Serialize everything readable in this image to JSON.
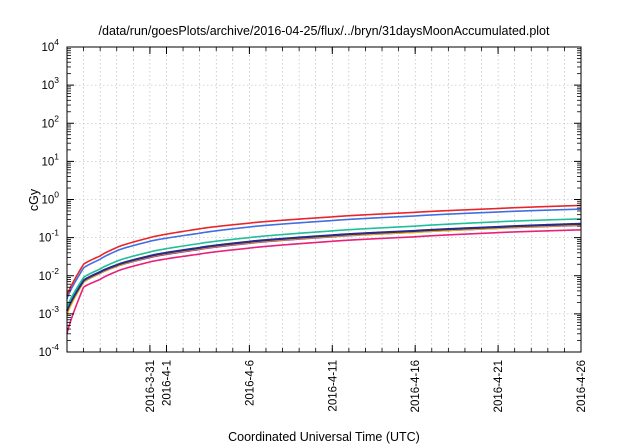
{
  "chart_data": {
    "type": "line",
    "title": "/data/run/goesPlots/archive/2016-04-25/flux/../bryn/31daysMoonAccumulated.plot",
    "xlabel": "Coordinated Universal Time (UTC)",
    "ylabel": "cGy",
    "yscale": "log",
    "ylim": [
      0.0001,
      10000
    ],
    "xlim": [
      "2016-03-26",
      "2016-04-26"
    ],
    "grid": true,
    "legend": "none",
    "y_ticks": [
      {
        "value": 0.0001,
        "base": "10",
        "exp": "-4"
      },
      {
        "value": 0.001,
        "base": "10",
        "exp": "-3"
      },
      {
        "value": 0.01,
        "base": "10",
        "exp": "-2"
      },
      {
        "value": 0.1,
        "base": "10",
        "exp": "-1"
      },
      {
        "value": 1,
        "base": "10",
        "exp": "0"
      },
      {
        "value": 10,
        "base": "10",
        "exp": "1"
      },
      {
        "value": 100,
        "base": "10",
        "exp": "2"
      },
      {
        "value": 1000,
        "base": "10",
        "exp": "3"
      },
      {
        "value": 10000,
        "base": "10",
        "exp": "4"
      }
    ],
    "x_ticks": [
      {
        "date": "2016-03-31",
        "label": "2016-3-31"
      },
      {
        "date": "2016-04-01",
        "label": "2016-4-1"
      },
      {
        "date": "2016-04-06",
        "label": "2016-4-6"
      },
      {
        "date": "2016-04-11",
        "label": "2016-4-11"
      },
      {
        "date": "2016-04-16",
        "label": "2016-4-16"
      },
      {
        "date": "2016-04-21",
        "label": "2016-4-21"
      },
      {
        "date": "2016-04-26",
        "label": "2016-4-26"
      }
    ],
    "series": [
      {
        "color": "#e8262a",
        "x": [
          "2016-03-26",
          "2016-03-27",
          "2016-03-28",
          "2016-03-29",
          "2016-03-31",
          "2016-04-03",
          "2016-04-06",
          "2016-04-11",
          "2016-04-16",
          "2016-04-21",
          "2016-04-26"
        ],
        "y": [
          0.003,
          0.02,
          0.033,
          0.055,
          0.1,
          0.17,
          0.24,
          0.35,
          0.46,
          0.58,
          0.7
        ]
      },
      {
        "color": "#3f6fe0",
        "x": [
          "2016-03-26",
          "2016-03-27",
          "2016-03-28",
          "2016-03-29",
          "2016-03-31",
          "2016-04-03",
          "2016-04-06",
          "2016-04-11",
          "2016-04-16",
          "2016-04-21",
          "2016-04-26"
        ],
        "y": [
          0.0025,
          0.016,
          0.027,
          0.045,
          0.08,
          0.13,
          0.19,
          0.28,
          0.37,
          0.47,
          0.56
        ]
      },
      {
        "color": "#1fbf9a",
        "x": [
          "2016-03-26",
          "2016-03-27",
          "2016-03-28",
          "2016-03-29",
          "2016-03-31",
          "2016-04-03",
          "2016-04-06",
          "2016-04-11",
          "2016-04-16",
          "2016-04-21",
          "2016-04-26"
        ],
        "y": [
          0.0015,
          0.009,
          0.015,
          0.024,
          0.042,
          0.07,
          0.1,
          0.15,
          0.2,
          0.26,
          0.31
        ]
      },
      {
        "color": "#f0b000",
        "x": [
          "2016-03-26",
          "2016-03-27",
          "2016-03-28",
          "2016-03-29",
          "2016-03-31",
          "2016-04-03",
          "2016-04-06",
          "2016-04-11",
          "2016-04-16",
          "2016-04-21",
          "2016-04-26"
        ],
        "y": [
          0.001,
          0.007,
          0.012,
          0.018,
          0.032,
          0.052,
          0.075,
          0.11,
          0.14,
          0.18,
          0.22
        ]
      },
      {
        "color": "#2a2a8a",
        "x": [
          "2016-03-26",
          "2016-03-27",
          "2016-03-28",
          "2016-03-29",
          "2016-03-31",
          "2016-04-03",
          "2016-04-06",
          "2016-04-11",
          "2016-04-16",
          "2016-04-21",
          "2016-04-26"
        ],
        "y": [
          0.0012,
          0.0075,
          0.0125,
          0.019,
          0.033,
          0.054,
          0.078,
          0.115,
          0.15,
          0.19,
          0.23
        ]
      },
      {
        "color": "#9a2fa8",
        "x": [
          "2016-03-26",
          "2016-03-27",
          "2016-03-28",
          "2016-03-29",
          "2016-03-31",
          "2016-04-03",
          "2016-04-06",
          "2016-04-11",
          "2016-04-16",
          "2016-04-21",
          "2016-04-26"
        ],
        "y": [
          0.001,
          0.0068,
          0.0115,
          0.0175,
          0.03,
          0.049,
          0.071,
          0.105,
          0.138,
          0.175,
          0.21
        ]
      },
      {
        "color": "#e8207a",
        "x": [
          "2016-03-26",
          "2016-03-27",
          "2016-03-28",
          "2016-03-29",
          "2016-03-31",
          "2016-04-03",
          "2016-04-06",
          "2016-04-11",
          "2016-04-16",
          "2016-04-21",
          "2016-04-26"
        ],
        "y": [
          0.0003,
          0.005,
          0.008,
          0.013,
          0.023,
          0.037,
          0.053,
          0.08,
          0.105,
          0.135,
          0.16
        ]
      }
    ]
  }
}
